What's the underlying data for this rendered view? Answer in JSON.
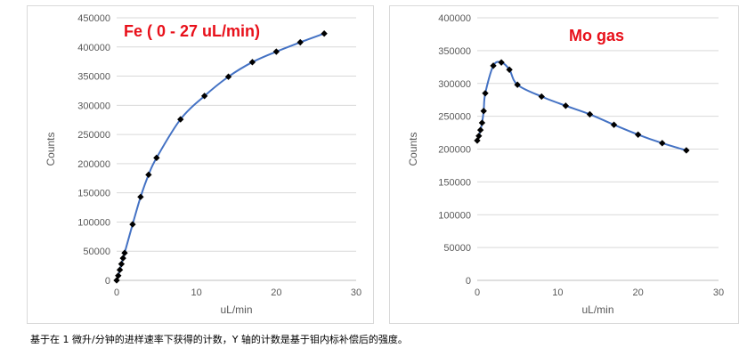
{
  "caption": "基于在 1 微升/分钟的进样速率下获得的计数，Y 轴的计数是基于钼内标补偿后的强度。",
  "colors": {
    "series_line": "#4472c4",
    "marker": "#000000",
    "title": "#e8101a",
    "grid": "#d9d9d9"
  },
  "chart_data": [
    {
      "type": "line",
      "title": "Fe ( 0 - 27 uL/min)",
      "xlabel": "uL/min",
      "ylabel": "Counts",
      "xlim": [
        0,
        30
      ],
      "ylim": [
        0,
        450000
      ],
      "x_ticks": [
        "0",
        "10",
        "20",
        "30"
      ],
      "y_ticks": [
        "0",
        "50000",
        "100000",
        "150000",
        "200000",
        "250000",
        "300000",
        "350000",
        "400000",
        "450000"
      ],
      "grid": "horizontal",
      "series": [
        {
          "x": [
            0,
            0.2,
            0.4,
            0.6,
            0.8,
            1,
            2,
            3,
            4,
            5,
            8,
            11,
            14,
            17,
            20,
            23,
            26
          ],
          "y": [
            0,
            8000,
            18000,
            28000,
            38000,
            47000,
            96000,
            143000,
            181000,
            210000,
            276000,
            316000,
            349000,
            374000,
            392000,
            408000,
            423000
          ]
        }
      ]
    },
    {
      "type": "line",
      "title": "Mo gas",
      "xlabel": "uL/min",
      "ylabel": "Counts",
      "xlim": [
        0,
        30
      ],
      "ylim": [
        0,
        400000
      ],
      "x_ticks": [
        "0",
        "10",
        "20",
        "30"
      ],
      "y_ticks": [
        "0",
        "50000",
        "100000",
        "150000",
        "200000",
        "250000",
        "300000",
        "350000",
        "400000"
      ],
      "grid": "horizontal",
      "series": [
        {
          "x": [
            0,
            0.2,
            0.4,
            0.6,
            0.8,
            1,
            2,
            3,
            4,
            5,
            8,
            11,
            14,
            17,
            20,
            23,
            26
          ],
          "y": [
            213000,
            220000,
            229000,
            240000,
            258000,
            285000,
            327000,
            332000,
            321000,
            298000,
            280000,
            266000,
            253000,
            237000,
            222000,
            209000,
            198000
          ]
        }
      ]
    }
  ]
}
